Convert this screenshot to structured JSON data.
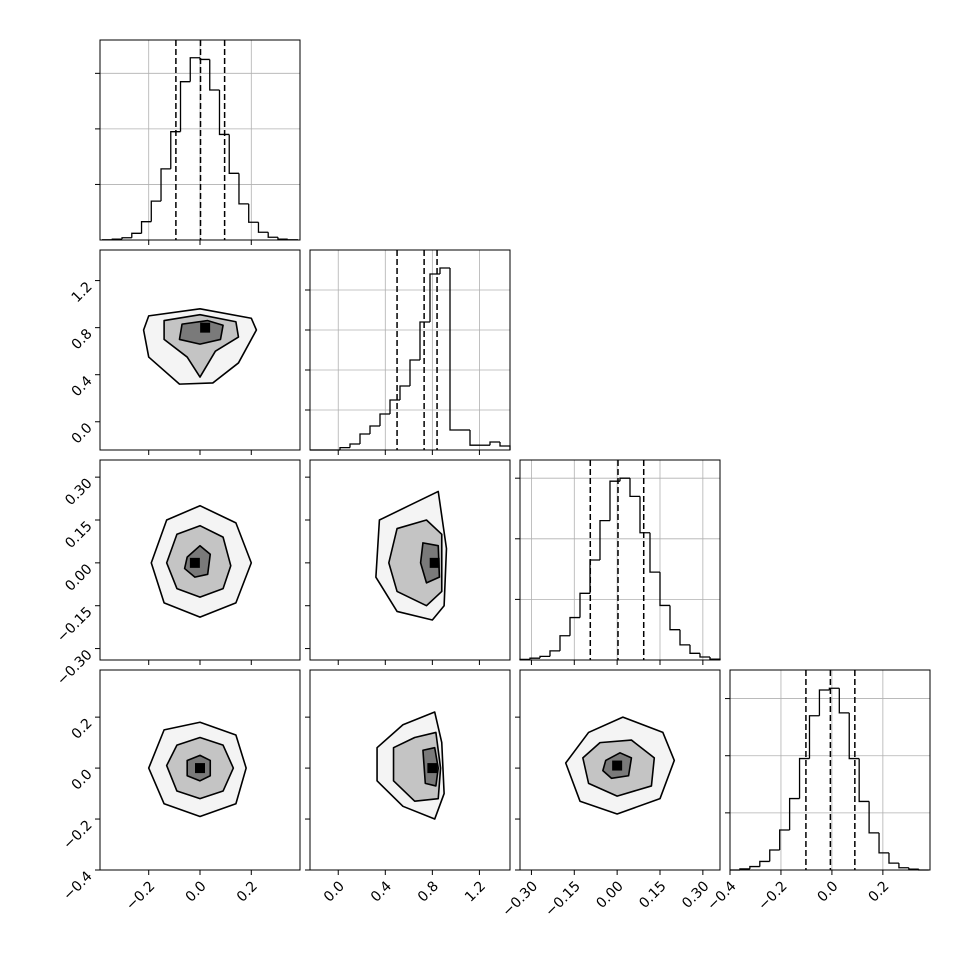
{
  "chart_data": {
    "type": "corner",
    "params": [
      {
        "lim": [
          -0.39,
          0.39
        ],
        "ticks": [
          {
            "value": -0.2,
            "label": "−0.2"
          },
          {
            "value": 0,
            "label": "0.0"
          },
          0.2
        ],
        "hist": {
          "bins": [
            -0.38,
            -0.342,
            -0.304,
            -0.266,
            -0.228,
            -0.19,
            -0.152,
            -0.114,
            -0.076,
            -0.038,
            0,
            0.038,
            0.076,
            0.114,
            0.152,
            0.19,
            0.228,
            0.266,
            0.304,
            0.342,
            0.38
          ],
          "counts": [
            5,
            15,
            40,
            120,
            330,
            700,
            1280,
            1950,
            2850,
            3280,
            3250,
            2700,
            1900,
            1200,
            650,
            320,
            140,
            50,
            15,
            5
          ],
          "ylim": [
            0,
            3600
          ],
          "yticks": [
            1000,
            2000,
            3000
          ]
        },
        "quantiles": [
          -0.094,
          0.002,
          0.096
        ]
      },
      {
        "lim": [
          -0.24,
          1.46
        ],
        "ticks": [
          {
            "value": 0,
            "label": "0.0"
          },
          0.4,
          0.8,
          1.2
        ],
        "hist": {
          "bins": [
            -0.24,
            -0.155,
            -0.07,
            0.015,
            0.1,
            0.185,
            0.27,
            0.355,
            0.44,
            0.525,
            0.61,
            0.695,
            0.78,
            0.865,
            0.95,
            1.035,
            1.12,
            1.205,
            1.29,
            1.375,
            1.46
          ],
          "counts": [
            0,
            0,
            0,
            60,
            150,
            400,
            600,
            900,
            1250,
            1600,
            2250,
            3200,
            4400,
            4550,
            500,
            500,
            120,
            120,
            200,
            100
          ],
          "ylim": [
            0,
            5000
          ],
          "yticks": [
            1000,
            2000,
            3000,
            4000
          ]
        },
        "quantiles": [
          0.5,
          0.73,
          0.84
        ]
      },
      {
        "lim": [
          -0.34,
          0.36
        ],
        "ticks": [
          {
            "value": -0.3,
            "label": "−0.30"
          },
          {
            "value": -0.15,
            "label": "−0.15"
          },
          {
            "value": 0,
            "label": "0.00"
          },
          0.15,
          {
            "value": 0.3,
            "label": "0.30"
          }
        ],
        "hist": {
          "bins": [
            -0.34,
            -0.305,
            -0.27,
            -0.235,
            -0.2,
            -0.165,
            -0.13,
            -0.095,
            -0.06,
            -0.025,
            0.01,
            0.045,
            0.08,
            0.115,
            0.15,
            0.185,
            0.22,
            0.255,
            0.29,
            0.325,
            0.36
          ],
          "counts": [
            10,
            30,
            60,
            150,
            400,
            700,
            1100,
            1650,
            2300,
            2950,
            3000,
            2700,
            2100,
            1450,
            900,
            500,
            250,
            110,
            50,
            15
          ],
          "ylim": [
            0,
            3300
          ],
          "yticks": [
            1000,
            2000,
            3000
          ]
        },
        "quantiles": [
          -0.094,
          0.003,
          0.093
        ]
      },
      {
        "lim": [
          -0.4,
          0.385
        ],
        "ticks": [
          {
            "value": -0.4,
            "label": "−0.4"
          },
          {
            "value": -0.2,
            "label": "−0.2"
          },
          {
            "value": 0,
            "label": "0.0"
          },
          0.2
        ],
        "hist": {
          "bins": [
            -0.4,
            -0.361,
            -0.322,
            -0.283,
            -0.244,
            -0.205,
            -0.166,
            -0.127,
            -0.088,
            -0.049,
            -0.01,
            0.029,
            0.068,
            0.107,
            0.146,
            0.185,
            0.224,
            0.263,
            0.302,
            0.341,
            0.38
          ],
          "counts": [
            0,
            20,
            60,
            150,
            350,
            700,
            1250,
            1950,
            2700,
            3150,
            3180,
            2750,
            1950,
            1200,
            650,
            300,
            120,
            40,
            15,
            0
          ],
          "ylim": [
            0,
            3500
          ],
          "yticks": [
            1000,
            2000,
            3000
          ]
        },
        "quantiles": [
          -0.102,
          -0.006,
          0.09
        ]
      }
    ],
    "panels": [
      {
        "contours": [
          {
            "x": [
              -0.2,
              0,
              0.2,
              0.22,
              0.15,
              0.05,
              -0.08,
              -0.2,
              -0.22
            ],
            "y": [
              0.9,
              0.96,
              0.88,
              0.78,
              0.5,
              0.33,
              0.32,
              0.55,
              0.78
            ]
          },
          {
            "x": [
              -0.14,
              0,
              0.14,
              0.15,
              0.06,
              0,
              -0.05,
              -0.14
            ],
            "y": [
              0.86,
              0.91,
              0.85,
              0.72,
              0.6,
              0.38,
              0.55,
              0.7
            ]
          },
          {
            "x": [
              -0.07,
              0.03,
              0.09,
              0.08,
              0,
              -0.08
            ],
            "y": [
              0.83,
              0.86,
              0.82,
              0.7,
              0.66,
              0.7
            ]
          }
        ],
        "peak": {
          "x": 0.02,
          "y": 0.8
        }
      },
      {
        "contours": [
          {
            "x": [
              -0.19,
              -0.13,
              0,
              0.14,
              0.2,
              0.14,
              0,
              -0.14
            ],
            "y": [
              0,
              0.15,
              0.2,
              0.14,
              0,
              -0.14,
              -0.19,
              -0.14
            ]
          },
          {
            "x": [
              -0.13,
              -0.09,
              0,
              0.09,
              0.12,
              0.09,
              0,
              -0.09
            ],
            "y": [
              0,
              0.1,
              0.13,
              0.09,
              -0.01,
              -0.09,
              -0.12,
              -0.09
            ]
          },
          {
            "x": [
              -0.05,
              0,
              0.04,
              0.03,
              -0.02,
              -0.06
            ],
            "y": [
              0.02,
              0.06,
              0.03,
              -0.04,
              -0.05,
              -0.02
            ]
          }
        ],
        "peak": {
          "x": -0.02,
          "y": 0
        }
      },
      {
        "contours": [
          {
            "x": [
              0.35,
              0.6,
              0.85,
              0.92,
              0.9,
              0.8,
              0.5,
              0.32
            ],
            "y": [
              0.15,
              0.2,
              0.25,
              0.05,
              -0.15,
              -0.2,
              -0.17,
              -0.05
            ]
          },
          {
            "x": [
              0.5,
              0.75,
              0.88,
              0.88,
              0.75,
              0.5,
              0.43
            ],
            "y": [
              0.12,
              0.15,
              0.1,
              -0.1,
              -0.15,
              -0.1,
              0
            ]
          },
          {
            "x": [
              0.72,
              0.85,
              0.86,
              0.75,
              0.7
            ],
            "y": [
              0.07,
              0.06,
              -0.05,
              -0.07,
              0
            ]
          }
        ],
        "peak": {
          "x": 0.82,
          "y": 0
        }
      },
      {
        "contours": [
          {
            "x": [
              -0.2,
              -0.14,
              0,
              0.14,
              0.18,
              0.14,
              0,
              -0.14
            ],
            "y": [
              0,
              0.15,
              0.18,
              0.13,
              0,
              -0.14,
              -0.19,
              -0.14
            ]
          },
          {
            "x": [
              -0.13,
              -0.09,
              0,
              0.09,
              0.13,
              0.09,
              0,
              -0.09
            ],
            "y": [
              0.01,
              0.09,
              0.12,
              0.09,
              0,
              -0.09,
              -0.12,
              -0.09
            ]
          },
          {
            "x": [
              -0.05,
              0,
              0.04,
              0.04,
              0,
              -0.05
            ],
            "y": [
              0.03,
              0.05,
              0.03,
              -0.03,
              -0.05,
              -0.03
            ]
          }
        ],
        "peak": {
          "x": 0,
          "y": 0
        }
      },
      {
        "contours": [
          {
            "x": [
              0.33,
              0.55,
              0.82,
              0.88,
              0.9,
              0.82,
              0.55,
              0.33
            ],
            "y": [
              0.08,
              0.17,
              0.22,
              0.1,
              -0.1,
              -0.2,
              -0.15,
              -0.05
            ]
          },
          {
            "x": [
              0.47,
              0.65,
              0.83,
              0.87,
              0.85,
              0.65,
              0.47
            ],
            "y": [
              0.08,
              0.12,
              0.14,
              0,
              -0.12,
              -0.13,
              -0.05
            ]
          },
          {
            "x": [
              0.72,
              0.82,
              0.85,
              0.83,
              0.74
            ],
            "y": [
              0.07,
              0.08,
              0,
              -0.07,
              -0.06
            ]
          }
        ],
        "peak": {
          "x": 0.8,
          "y": 0
        }
      },
      {
        "contours": [
          {
            "x": [
              -0.18,
              -0.1,
              0.02,
              0.16,
              0.2,
              0.15,
              0,
              -0.13
            ],
            "y": [
              0.02,
              0.14,
              0.2,
              0.14,
              0.03,
              -0.12,
              -0.18,
              -0.13
            ]
          },
          {
            "x": [
              -0.12,
              -0.06,
              0.05,
              0.13,
              0.12,
              0,
              -0.1
            ],
            "y": [
              0.04,
              0.1,
              0.11,
              0.04,
              -0.07,
              -0.11,
              -0.06
            ]
          },
          {
            "x": [
              -0.04,
              0.01,
              0.05,
              0.04,
              -0.02,
              -0.05
            ],
            "y": [
              0.03,
              0.06,
              0.04,
              -0.03,
              -0.04,
              -0.01
            ]
          }
        ],
        "peak": {
          "x": 0,
          "y": 0.01
        }
      }
    ],
    "grid": true
  }
}
